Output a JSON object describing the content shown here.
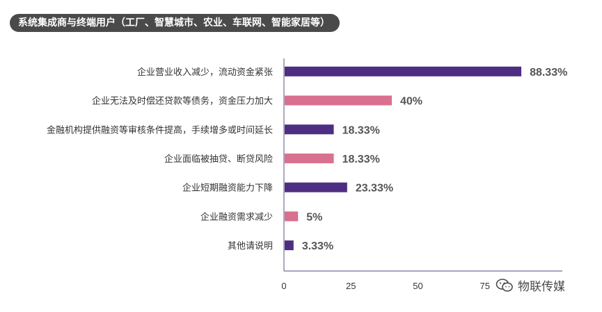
{
  "header": {
    "title": "系统集成商与终端用户（工厂、智慧城市、农业、车联网、智能家居等）"
  },
  "watermark": {
    "text": "物联传媒",
    "icon": "wechat-icon"
  },
  "colors": {
    "purple": "#4e2e82",
    "pink": "#d9708f",
    "axis": "#7a6a9a",
    "text": "#333333",
    "value_text": "#555555"
  },
  "chart_data": {
    "type": "bar",
    "orientation": "horizontal",
    "categories": [
      "企业营业收入减少，流动资金紧张",
      "企业无法及时偿还贷款等债务，资金压力加大",
      "金融机构提供融资等审核条件提高，手续增多或时间延长",
      "企业面临被抽贷、断贷风险",
      "企业短期融资能力下降",
      "企业融资需求减少",
      "其他请说明"
    ],
    "values": [
      88.33,
      40,
      18.33,
      18.33,
      23.33,
      5,
      3.33
    ],
    "value_labels": [
      "88.33%",
      "40%",
      "18.33%",
      "18.33%",
      "23.33%",
      "5%",
      "3.33%"
    ],
    "bar_colors": [
      "#4e2e82",
      "#d9708f",
      "#4e2e82",
      "#d9708f",
      "#4e2e82",
      "#d9708f",
      "#4e2e82"
    ],
    "xticks": [
      "0",
      "25",
      "50",
      "75"
    ],
    "xlim": [
      0,
      100
    ],
    "grid": false
  }
}
